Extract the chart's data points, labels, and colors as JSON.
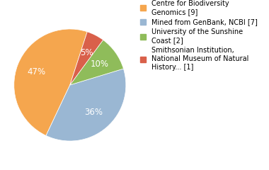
{
  "labels": [
    "Centre for Biodiversity\nGenomics [9]",
    "Mined from GenBank, NCBI [7]",
    "University of the Sunshine\nCoast [2]",
    "Smithsonian Institution,\nNational Museum of Natural\nHistory... [1]"
  ],
  "values": [
    47,
    36,
    10,
    5
  ],
  "colors": [
    "#f5a64e",
    "#9ab7d3",
    "#8fbc5a",
    "#d9604a"
  ],
  "pct_labels": [
    "47%",
    "36%",
    "10%",
    "5%"
  ],
  "pct_colors": [
    "white",
    "white",
    "white",
    "white"
  ],
  "startangle": 72,
  "legend_fontsize": 7.0,
  "pct_fontsize": 8.5,
  "background_color": "#ffffff"
}
